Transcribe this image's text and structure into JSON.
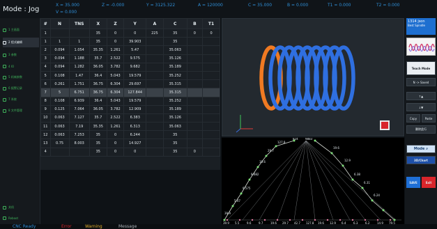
{
  "header": {
    "mode_label": "Mode : Jog",
    "coords": [
      "X = 35.000",
      "Z = -0.000",
      "Y = 3125.322",
      "A = 120000",
      "C = 35.000",
      "B = 0.000",
      "T1 = 0.000",
      "T2 = 0.000",
      "V = 0.000"
    ]
  },
  "sidebar": {
    "items": [
      "1 主画面",
      "2 程式编辑",
      "3 参数",
      "4 IO",
      "5 机械参数",
      "6 报警记录",
      "7 系统",
      "8 文件管理"
    ],
    "bottom_items": [
      "关机",
      "Reboot"
    ]
  },
  "table": {
    "columns": [
      "#",
      "N",
      "TNS",
      "X",
      "Z",
      "Y",
      "A",
      "C",
      "B",
      "T1"
    ],
    "rows": [
      [
        "1",
        "",
        "",
        "35",
        "0",
        "0",
        "225",
        "35",
        "0",
        "0"
      ],
      [
        "1",
        "1",
        "1",
        "35",
        "0",
        "39.903",
        "",
        "35",
        "",
        ""
      ],
      [
        "2",
        "0.094",
        "1.054",
        "35.35",
        "1.261",
        "5.47",
        "",
        "35.063",
        "",
        ""
      ],
      [
        "3",
        "0.094",
        "1.188",
        "35.7",
        "2.522",
        "9.575",
        "",
        "35.126",
        "",
        ""
      ],
      [
        "4",
        "0.094",
        "1.282",
        "36.05",
        "3.782",
        "9.682",
        "",
        "35.189",
        "",
        ""
      ],
      [
        "5",
        "0.108",
        "1.47",
        "36.4",
        "5.043",
        "19.579",
        "",
        "35.252",
        "",
        ""
      ],
      [
        "6",
        "0.261",
        "1.751",
        "36.75",
        "6.304",
        "29.697",
        "",
        "35.315",
        "",
        ""
      ],
      [
        "7",
        "5",
        "6.751",
        "36.75",
        "6.304",
        "127.844",
        "",
        "35.315",
        "",
        ""
      ],
      [
        "8",
        "0.108",
        "6.939",
        "36.4",
        "5.043",
        "19.579",
        "",
        "35.252",
        "",
        ""
      ],
      [
        "9",
        "0.125",
        "7.064",
        "36.05",
        "3.782",
        "12.909",
        "",
        "35.189",
        "",
        ""
      ],
      [
        "10",
        "0.063",
        "7.127",
        "35.7",
        "2.522",
        "6.383",
        "",
        "35.126",
        "",
        ""
      ],
      [
        "11",
        "0.063",
        "7.19",
        "35.35",
        "1.261",
        "6.313",
        "",
        "35.063",
        "",
        ""
      ],
      [
        "12",
        "0.063",
        "7.253",
        "35",
        "0",
        "6.244",
        "",
        "35",
        "",
        ""
      ],
      [
        "13",
        "0.75",
        "8.003",
        "35",
        "0",
        "14.927",
        "",
        "35",
        "",
        ""
      ],
      [
        "4",
        "",
        "",
        "35",
        "0",
        "0",
        "",
        "35",
        "0",
        ""
      ]
    ]
  },
  "profile": {
    "top_labels": [
      "824",
      "9883"
    ],
    "side_labels": [
      "39.9",
      "5.47",
      "9.575",
      "9.682",
      "19.6",
      "29.7",
      "127.8",
      "19.6",
      "12.9",
      "6.38",
      "6.31",
      "6.24"
    ],
    "bottom_labels": [
      "39.9",
      "5.5",
      "9.6",
      "9.7",
      "19.6",
      "29.7",
      "42.7",
      "127.8",
      "19.6",
      "12.9",
      "6.4",
      "6.3",
      "6.2",
      "14.9",
      "79.5"
    ]
  },
  "rightpanel": {
    "info_title": "1314 json",
    "info_sub": "Best Spindle",
    "teach_mode": "Teach Mode",
    "step_label": "N -> Saved",
    "up_label": "↑▲",
    "down_label": "↓▼",
    "copy_label": "Copy",
    "paste_label": "Paste",
    "delete_label": "删除此行",
    "mode_button": "Mode",
    "view_button": "3D/Chart",
    "save_button": "SAVE",
    "exit_button": "Exit"
  },
  "bottom_tabs": [
    "CNC Ready",
    "Error",
    "Warning",
    "Message"
  ],
  "colors": {
    "accent": "#2f8fd8",
    "spring_blue": "#2f6fe0",
    "spring_orange": "#f07a22",
    "profile_line": "#d8ddd6",
    "green_dot": "#7fe07a",
    "pink_mark": "#e37aa2",
    "save_bg": "#1f6fd6",
    "exit_bg": "#d8252b"
  }
}
